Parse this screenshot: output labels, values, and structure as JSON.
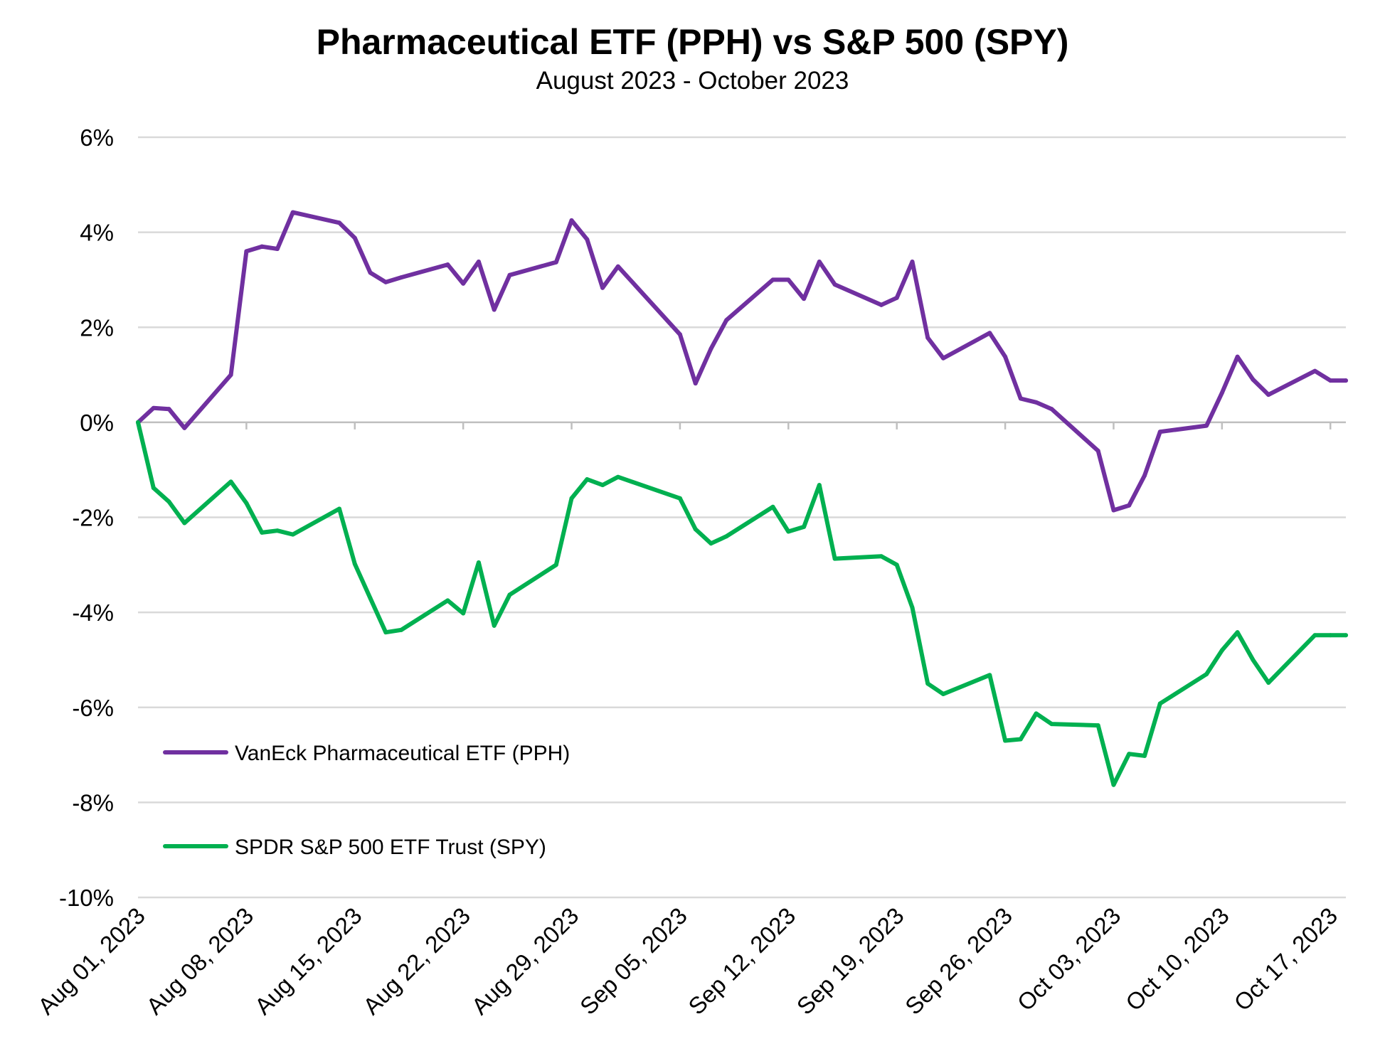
{
  "chart_data": {
    "type": "line",
    "title": "Pharmaceutical ETF (PPH) vs S&P 500 (SPY)",
    "subtitle": "August 2023 - October 2023",
    "xlabel": "",
    "ylabel": "",
    "ylim": [
      -10,
      6
    ],
    "yticks": [
      6,
      4,
      2,
      0,
      -2,
      -4,
      -6,
      -8,
      -10
    ],
    "ytick_labels": [
      "6%",
      "4%",
      "2%",
      "0%",
      "-2%",
      "-4%",
      "-6%",
      "-8%",
      "-10%"
    ],
    "xlim": [
      "2023-08-01",
      "2023-10-18"
    ],
    "xticks": [
      "2023-08-01",
      "2023-08-08",
      "2023-08-15",
      "2023-08-22",
      "2023-08-29",
      "2023-09-05",
      "2023-09-12",
      "2023-09-19",
      "2023-09-26",
      "2023-10-03",
      "2023-10-10",
      "2023-10-17"
    ],
    "xtick_labels": [
      "Aug 01, 2023",
      "Aug 08, 2023",
      "Aug 15, 2023",
      "Aug 22, 2023",
      "Aug 29, 2023",
      "Sep 05, 2023",
      "Sep 12, 2023",
      "Sep 19, 2023",
      "Sep 26, 2023",
      "Oct 03, 2023",
      "Oct 10, 2023",
      "Oct 17, 2023"
    ],
    "grid": true,
    "legend_position": "bottom-left",
    "x": [
      "2023-08-01",
      "2023-08-02",
      "2023-08-03",
      "2023-08-04",
      "2023-08-07",
      "2023-08-08",
      "2023-08-09",
      "2023-08-10",
      "2023-08-11",
      "2023-08-14",
      "2023-08-15",
      "2023-08-16",
      "2023-08-17",
      "2023-08-18",
      "2023-08-21",
      "2023-08-22",
      "2023-08-23",
      "2023-08-24",
      "2023-08-25",
      "2023-08-28",
      "2023-08-29",
      "2023-08-30",
      "2023-08-31",
      "2023-09-01",
      "2023-09-05",
      "2023-09-06",
      "2023-09-07",
      "2023-09-08",
      "2023-09-11",
      "2023-09-12",
      "2023-09-13",
      "2023-09-14",
      "2023-09-15",
      "2023-09-18",
      "2023-09-19",
      "2023-09-20",
      "2023-09-21",
      "2023-09-22",
      "2023-09-25",
      "2023-09-26",
      "2023-09-27",
      "2023-09-28",
      "2023-09-29",
      "2023-10-02",
      "2023-10-03",
      "2023-10-04",
      "2023-10-05",
      "2023-10-06",
      "2023-10-09",
      "2023-10-10",
      "2023-10-11",
      "2023-10-12",
      "2023-10-13",
      "2023-10-16",
      "2023-10-17",
      "2023-10-18"
    ],
    "series": [
      {
        "name": "VanEck Pharmaceutical ETF (PPH)",
        "color": "#7030A0",
        "values": [
          0.0,
          0.3,
          0.28,
          -0.12,
          1.0,
          3.6,
          3.7,
          3.65,
          4.42,
          4.2,
          3.88,
          3.15,
          2.95,
          3.05,
          3.32,
          2.92,
          3.38,
          2.37,
          3.1,
          3.37,
          4.25,
          3.85,
          2.83,
          3.28,
          1.85,
          0.82,
          1.55,
          2.15,
          3.0,
          3.0,
          2.6,
          3.38,
          2.9,
          2.47,
          2.62,
          3.38,
          1.78,
          1.35,
          1.88,
          1.38,
          0.5,
          0.42,
          0.28,
          -0.6,
          -1.85,
          -1.75,
          -1.12,
          -0.2,
          -0.07,
          0.62,
          1.38,
          0.9,
          0.58,
          1.08,
          0.88,
          0.88
        ]
      },
      {
        "name": "SPDR S&P 500 ETF Trust (SPY)",
        "color": "#00B050",
        "values": [
          0.0,
          -1.38,
          -1.67,
          -2.12,
          -1.25,
          -1.7,
          -2.32,
          -2.28,
          -2.36,
          -1.82,
          -2.98,
          -3.7,
          -4.42,
          -4.37,
          -3.75,
          -4.02,
          -2.95,
          -4.28,
          -3.63,
          -3.0,
          -1.6,
          -1.2,
          -1.32,
          -1.15,
          -1.6,
          -2.25,
          -2.55,
          -2.4,
          -1.78,
          -2.3,
          -2.2,
          -1.32,
          -2.87,
          -2.82,
          -3.0,
          -3.9,
          -5.5,
          -5.72,
          -5.32,
          -6.7,
          -6.67,
          -6.13,
          -6.35,
          -6.38,
          -7.63,
          -6.98,
          -7.02,
          -5.92,
          -5.3,
          -4.8,
          -4.42,
          -5.0,
          -5.48,
          -4.48,
          -4.48,
          -4.48
        ]
      }
    ]
  }
}
